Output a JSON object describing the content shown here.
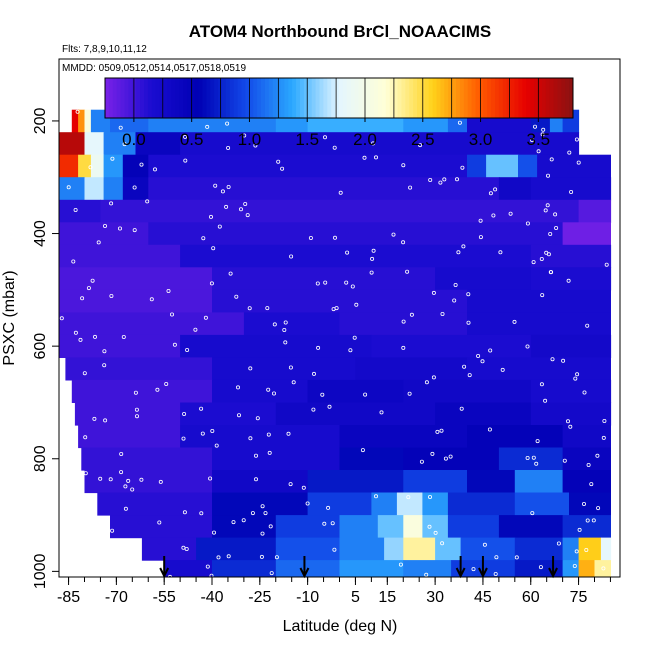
{
  "chart_data": {
    "type": "heatmap",
    "title": "ATOM4 Northbound BrCl_NOAACIMS",
    "flights_label": "Flts: 7,8,9,10,11,12",
    "dates_label": "MMDD: 0509,0512,0514,0517,0518,0519",
    "xlabel": "Latitude (deg N)",
    "ylabel": "PSXC (mbar)",
    "xlim": [
      -88,
      88
    ],
    "ylim": [
      1010,
      90
    ],
    "x_ticks": [
      -85,
      -70,
      -55,
      -40,
      -25,
      -10,
      5,
      15,
      30,
      45,
      60,
      75
    ],
    "x_tick_labels": [
      "-85",
      "-70",
      "-55",
      "-40",
      "-25",
      "-10",
      "5",
      "15",
      "30",
      "45",
      "60",
      "75"
    ],
    "y_ticks": [
      200,
      400,
      600,
      800,
      1000
    ],
    "y_tick_labels": [
      "200",
      "400",
      "600",
      "800",
      "1000"
    ],
    "colorbar": {
      "range": [
        -0.25,
        3.8
      ],
      "ticks": [
        0.0,
        0.5,
        1.0,
        1.5,
        2.0,
        2.5,
        3.0,
        3.5
      ],
      "tick_labels": [
        "0.0",
        "0.5",
        "1.0",
        "1.5",
        "2.0",
        "2.5",
        "3.0",
        "3.5"
      ],
      "colors": [
        "#7a22e8",
        "#1a0cd0",
        "#0000b4",
        "#1248e8",
        "#2aa8ff",
        "#e4f6ff",
        "#ffffd6",
        "#ffd21a",
        "#ff5a00",
        "#e60000",
        "#8a1212"
      ]
    },
    "descent_arrow_latitudes": [
      -55,
      -11,
      38,
      45,
      67
    ],
    "levels": [
      {
        "p": 200,
        "lat_min": -84,
        "lat_max": 75,
        "cells": [
          [
            -84,
            -82,
            3.4
          ],
          [
            -82,
            -80,
            2.8
          ],
          [
            -80,
            -78,
            2.1
          ],
          [
            -78,
            -72,
            1.2
          ],
          [
            -72,
            -60,
            1.1
          ],
          [
            -60,
            -40,
            1.2
          ],
          [
            -40,
            -20,
            1.2
          ],
          [
            -20,
            0,
            1.3
          ],
          [
            -10,
            20,
            1.4
          ],
          [
            20,
            34,
            1.3
          ],
          [
            34,
            40,
            1.1
          ],
          [
            40,
            60,
            0.2
          ],
          [
            60,
            66,
            0.7
          ],
          [
            66,
            70,
            1.2
          ],
          [
            70,
            75,
            0.9
          ]
        ]
      },
      {
        "p": 240,
        "lat_min": -88,
        "lat_max": 75,
        "cells": [
          [
            -88,
            -80,
            3.6
          ],
          [
            -80,
            -74,
            1.8
          ],
          [
            -74,
            -64,
            1.2
          ],
          [
            -64,
            -50,
            0.4
          ],
          [
            -50,
            75,
            0.2
          ]
        ]
      },
      {
        "p": 280,
        "lat_min": -88,
        "lat_max": 85,
        "cells": [
          [
            -88,
            -82,
            3.2
          ],
          [
            -82,
            -78,
            2.5
          ],
          [
            -78,
            -74,
            1.9
          ],
          [
            -74,
            -68,
            1.3
          ],
          [
            -68,
            -60,
            0.5
          ],
          [
            -60,
            40,
            0.15
          ],
          [
            40,
            46,
            0.9
          ],
          [
            46,
            56,
            1.5
          ],
          [
            56,
            62,
            1.0
          ],
          [
            62,
            85,
            0.2
          ]
        ]
      },
      {
        "p": 320,
        "lat_min": -88,
        "lat_max": 85,
        "cells": [
          [
            -88,
            -80,
            1.2
          ],
          [
            -80,
            -74,
            1.7
          ],
          [
            -74,
            -68,
            1.2
          ],
          [
            -68,
            -60,
            0.4
          ],
          [
            -60,
            50,
            0.1
          ],
          [
            50,
            60,
            0.3
          ],
          [
            60,
            85,
            0.2
          ]
        ]
      },
      {
        "p": 360,
        "lat_min": -88,
        "lat_max": 85,
        "cells": [
          [
            -88,
            -75,
            0.1
          ],
          [
            -75,
            75,
            0.05
          ],
          [
            75,
            85,
            -0.1
          ]
        ]
      },
      {
        "p": 400,
        "lat_min": -88,
        "lat_max": 85,
        "cells": [
          [
            -88,
            -60,
            0.0
          ],
          [
            -60,
            70,
            0.1
          ],
          [
            70,
            85,
            -0.2
          ]
        ]
      },
      {
        "p": 440,
        "lat_min": -88,
        "lat_max": 85,
        "cells": [
          [
            -88,
            -50,
            0.0
          ],
          [
            -50,
            60,
            0.15
          ],
          [
            60,
            85,
            0.1
          ]
        ]
      },
      {
        "p": 480,
        "lat_min": -88,
        "lat_max": 85,
        "cells": [
          [
            -88,
            -40,
            -0.05
          ],
          [
            -40,
            30,
            0.1
          ],
          [
            30,
            60,
            0.2
          ],
          [
            60,
            85,
            0.15
          ]
        ]
      },
      {
        "p": 520,
        "lat_min": -88,
        "lat_max": 85,
        "cells": [
          [
            -88,
            -40,
            -0.05
          ],
          [
            -40,
            40,
            0.1
          ],
          [
            40,
            85,
            0.2
          ]
        ]
      },
      {
        "p": 560,
        "lat_min": -88,
        "lat_max": 85,
        "cells": [
          [
            -88,
            -30,
            0.0
          ],
          [
            -30,
            0,
            0.15
          ],
          [
            0,
            40,
            0.1
          ],
          [
            40,
            85,
            0.2
          ]
        ]
      },
      {
        "p": 600,
        "lat_min": -88,
        "lat_max": 85,
        "cells": [
          [
            -88,
            -50,
            0.0
          ],
          [
            -50,
            10,
            0.2
          ],
          [
            10,
            60,
            0.15
          ],
          [
            60,
            85,
            0.25
          ]
        ]
      },
      {
        "p": 640,
        "lat_min": -86,
        "lat_max": 85,
        "cells": [
          [
            -86,
            -40,
            0.05
          ],
          [
            -40,
            5,
            0.2
          ],
          [
            5,
            40,
            0.25
          ],
          [
            40,
            85,
            0.2
          ]
        ]
      },
      {
        "p": 680,
        "lat_min": -84,
        "lat_max": 85,
        "cells": [
          [
            -84,
            -40,
            0.0
          ],
          [
            -40,
            -10,
            0.2
          ],
          [
            -10,
            20,
            0.35
          ],
          [
            20,
            60,
            0.3
          ],
          [
            60,
            85,
            0.2
          ]
        ]
      },
      {
        "p": 720,
        "lat_min": -83,
        "lat_max": 85,
        "cells": [
          [
            -83,
            -50,
            0.0
          ],
          [
            -50,
            -20,
            0.15
          ],
          [
            -20,
            30,
            0.3
          ],
          [
            30,
            60,
            0.4
          ],
          [
            60,
            85,
            0.25
          ]
        ]
      },
      {
        "p": 760,
        "lat_min": -82,
        "lat_max": 85,
        "cells": [
          [
            -82,
            -50,
            0.0
          ],
          [
            -50,
            0,
            0.2
          ],
          [
            0,
            40,
            0.4
          ],
          [
            40,
            70,
            0.5
          ],
          [
            70,
            85,
            0.3
          ]
        ]
      },
      {
        "p": 800,
        "lat_min": -81,
        "lat_max": 85,
        "cells": [
          [
            -81,
            -40,
            0.05
          ],
          [
            -40,
            0,
            0.2
          ],
          [
            0,
            20,
            0.6
          ],
          [
            20,
            50,
            0.5
          ],
          [
            50,
            70,
            0.8
          ],
          [
            70,
            85,
            0.4
          ]
        ]
      },
      {
        "p": 840,
        "lat_min": -80,
        "lat_max": 85,
        "cells": [
          [
            -80,
            -40,
            0.05
          ],
          [
            -40,
            -10,
            0.3
          ],
          [
            -10,
            20,
            0.7
          ],
          [
            20,
            40,
            0.9
          ],
          [
            40,
            55,
            0.6
          ],
          [
            55,
            70,
            1.2
          ],
          [
            70,
            85,
            0.5
          ]
        ]
      },
      {
        "p": 880,
        "lat_min": -76,
        "lat_max": 85,
        "cells": [
          [
            -76,
            -40,
            0.1
          ],
          [
            -40,
            -10,
            0.6
          ],
          [
            -10,
            10,
            0.9
          ],
          [
            10,
            18,
            1.2
          ],
          [
            18,
            26,
            1.7
          ],
          [
            26,
            34,
            1.3
          ],
          [
            34,
            55,
            0.8
          ],
          [
            55,
            72,
            1.0
          ],
          [
            72,
            85,
            0.6
          ]
        ]
      },
      {
        "p": 920,
        "lat_min": -72,
        "lat_max": 85,
        "cells": [
          [
            -72,
            -40,
            0.1
          ],
          [
            -40,
            -20,
            0.6
          ],
          [
            -20,
            0,
            0.9
          ],
          [
            0,
            12,
            1.2
          ],
          [
            12,
            20,
            1.5
          ],
          [
            20,
            26,
            2.1
          ],
          [
            26,
            34,
            1.5
          ],
          [
            34,
            50,
            0.9
          ],
          [
            50,
            70,
            0.6
          ],
          [
            70,
            85,
            0.8
          ]
        ]
      },
      {
        "p": 960,
        "lat_min": -62,
        "lat_max": 85,
        "cells": [
          [
            -62,
            -45,
            0.1
          ],
          [
            -45,
            -20,
            0.7
          ],
          [
            -20,
            0,
            1.0
          ],
          [
            0,
            14,
            1.2
          ],
          [
            14,
            20,
            1.6
          ],
          [
            20,
            30,
            2.3
          ],
          [
            30,
            38,
            1.5
          ],
          [
            38,
            55,
            1.0
          ],
          [
            55,
            70,
            0.8
          ],
          [
            70,
            75,
            1.2
          ],
          [
            75,
            82,
            2.6
          ],
          [
            82,
            85,
            1.8
          ]
        ]
      },
      {
        "p": 1000,
        "lat_min": -55,
        "lat_max": 85,
        "cells": [
          [
            -55,
            -40,
            0.2
          ],
          [
            -40,
            -20,
            0.8
          ],
          [
            -20,
            0,
            1.1
          ],
          [
            0,
            20,
            1.3
          ],
          [
            20,
            35,
            1.2
          ],
          [
            35,
            55,
            0.9
          ],
          [
            55,
            70,
            0.7
          ],
          [
            70,
            75,
            1.3
          ],
          [
            75,
            80,
            2.7
          ],
          [
            80,
            85,
            2.3
          ]
        ]
      }
    ]
  }
}
